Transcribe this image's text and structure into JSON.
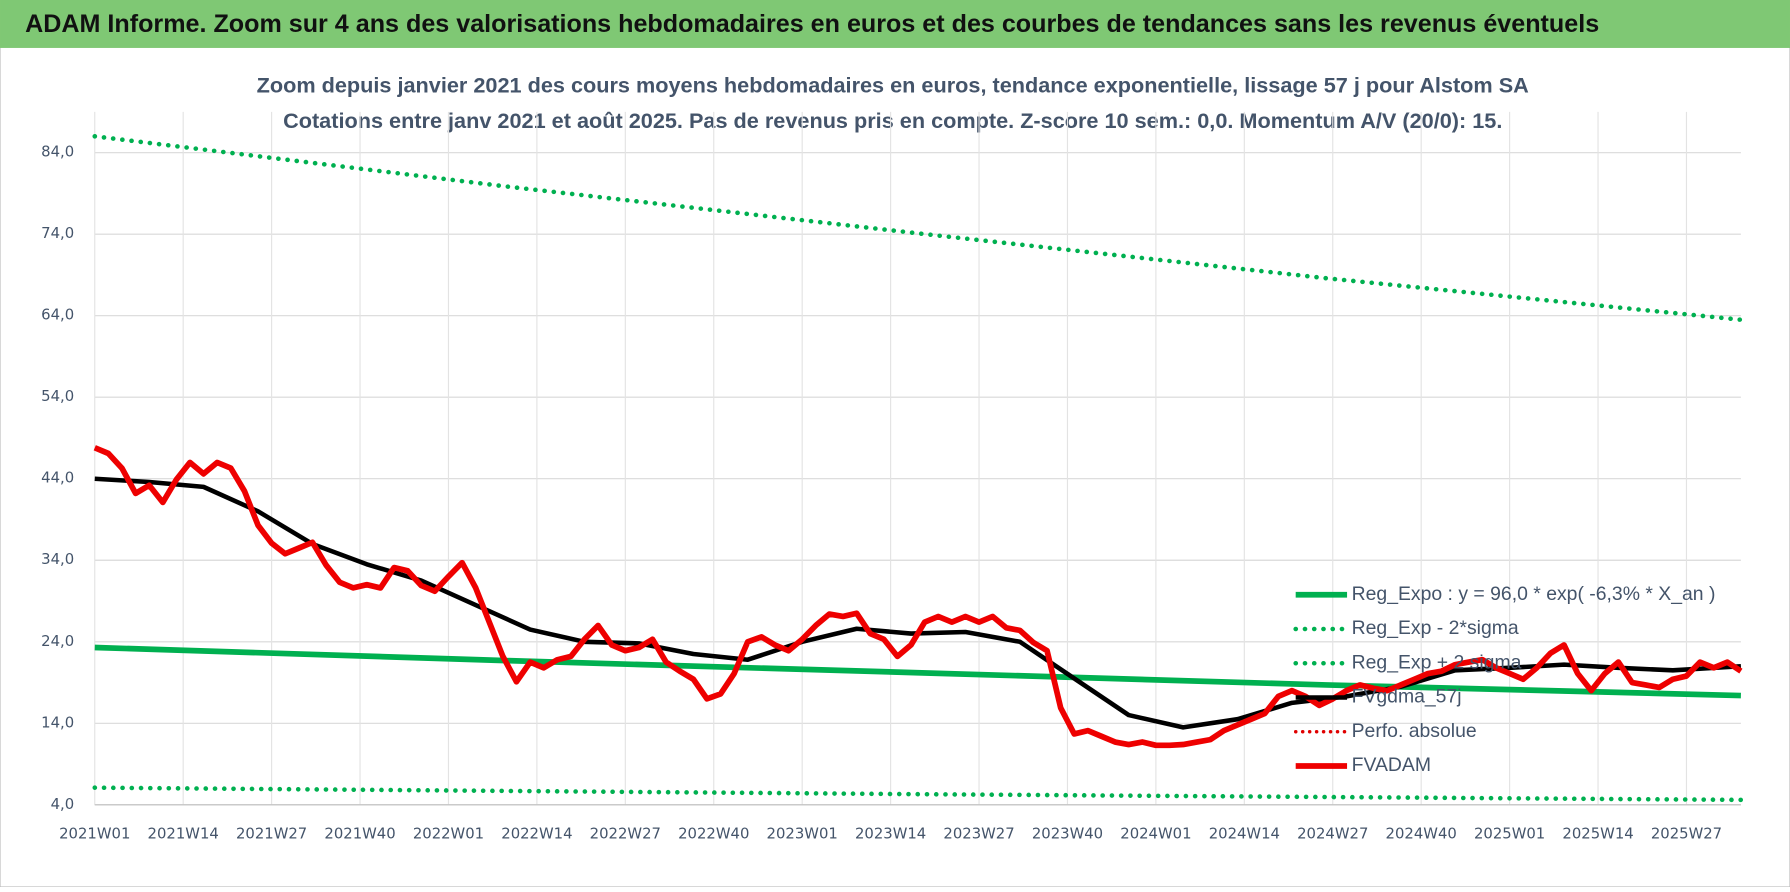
{
  "header_title": "ADAM Informe. Zoom sur 4 ans des valorisations hebdomadaires en euros et des courbes de tendances sans les revenus éventuels",
  "chart_data": {
    "type": "line",
    "title": "Zoom depuis janvier 2021 des cours moyens hebdomadaires en euros, tendance exponentielle, lissage 57 j pour Alstom SA",
    "subtitle": "Cotations entre janv 2021 et août 2025.  Pas de revenus pris en compte. Z-score 10 sem.: 0,0. Momentum A/V (20/0): 15.",
    "xlim": [
      0,
      242
    ],
    "xticks": [
      {
        "value": 0,
        "label": "2021W01"
      },
      {
        "value": 13,
        "label": "2021W14"
      },
      {
        "value": 26,
        "label": "2021W27"
      },
      {
        "value": 39,
        "label": "2021W40"
      },
      {
        "value": 52,
        "label": "2022W01"
      },
      {
        "value": 65,
        "label": "2022W14"
      },
      {
        "value": 78,
        "label": "2022W27"
      },
      {
        "value": 91,
        "label": "2022W40"
      },
      {
        "value": 104,
        "label": "2023W01"
      },
      {
        "value": 117,
        "label": "2023W14"
      },
      {
        "value": 130,
        "label": "2023W27"
      },
      {
        "value": 143,
        "label": "2023W40"
      },
      {
        "value": 156,
        "label": "2024W01"
      },
      {
        "value": 169,
        "label": "2024W14"
      },
      {
        "value": 182,
        "label": "2024W27"
      },
      {
        "value": 195,
        "label": "2024W40"
      },
      {
        "value": 208,
        "label": "2025W01"
      },
      {
        "value": 221,
        "label": "2025W14"
      },
      {
        "value": 234,
        "label": "2025W27"
      }
    ],
    "ylim": [
      4,
      89
    ],
    "yticks": [
      {
        "value": 4,
        "label": "4,0"
      },
      {
        "value": 14,
        "label": "14,0"
      },
      {
        "value": 24,
        "label": "24,0"
      },
      {
        "value": 34,
        "label": "34,0"
      },
      {
        "value": 44,
        "label": "44,0"
      },
      {
        "value": 54,
        "label": "54,0"
      },
      {
        "value": 64,
        "label": "64,0"
      },
      {
        "value": 74,
        "label": "74,0"
      },
      {
        "value": 84,
        "label": "84,0"
      }
    ],
    "grid": true,
    "legend": "lower right",
    "series": [
      {
        "name": "Reg_Expo : y = 96,0 * exp( -6,3% *  X_an )",
        "color": "#00b050",
        "style": "solid",
        "width": 5,
        "x": [
          0,
          60,
          121,
          181,
          242
        ],
        "values": [
          23.3,
          21.7,
          20.2,
          18.7,
          17.4
        ]
      },
      {
        "name": "Reg_Exp - 2*sigma",
        "color": "#00b050",
        "style": "dotted",
        "width": 4,
        "x": [
          0,
          121,
          242
        ],
        "values": [
          6.1,
          5.3,
          4.6
        ]
      },
      {
        "name": "Reg_Exp + 2 sigma",
        "color": "#00b050",
        "style": "dotted",
        "width": 4,
        "x": [
          0,
          60,
          121,
          181,
          242
        ],
        "values": [
          86,
          79.9,
          74.1,
          68.6,
          63.5
        ]
      },
      {
        "name": "FVgdma_57j",
        "color": "#000000",
        "style": "solid",
        "width": 4,
        "x": [
          0,
          8,
          16,
          24,
          32,
          40,
          48,
          56,
          64,
          72,
          80,
          88,
          96,
          104,
          112,
          120,
          128,
          136,
          144,
          152,
          160,
          168,
          176,
          184,
          192,
          200,
          208,
          216,
          224,
          232,
          242
        ],
        "values": [
          44.0,
          43.6,
          43.0,
          40.0,
          36.0,
          33.5,
          31.5,
          28.5,
          25.5,
          24.0,
          23.8,
          22.5,
          21.8,
          24.0,
          25.6,
          25.0,
          25.2,
          24.0,
          19.5,
          15.0,
          13.5,
          14.5,
          16.5,
          17.3,
          18.5,
          20.5,
          20.8,
          21.2,
          20.8,
          20.5,
          21.0
        ]
      },
      {
        "name": "Perfo. absolue",
        "color": "#e00000",
        "style": "dotted",
        "width": 3,
        "x": [],
        "values": []
      },
      {
        "name": "FVADAM",
        "color": "#ee0000",
        "style": "solid",
        "width": 5,
        "x": [
          0,
          2,
          4,
          6,
          8,
          10,
          12,
          14,
          16,
          18,
          20,
          22,
          24,
          26,
          28,
          30,
          32,
          34,
          36,
          38,
          40,
          42,
          44,
          46,
          48,
          50,
          52,
          54,
          56,
          58,
          60,
          62,
          64,
          66,
          68,
          70,
          72,
          74,
          76,
          78,
          80,
          82,
          84,
          86,
          88,
          90,
          92,
          94,
          96,
          98,
          100,
          102,
          104,
          106,
          108,
          110,
          112,
          114,
          116,
          118,
          120,
          122,
          124,
          126,
          128,
          130,
          132,
          134,
          136,
          138,
          140,
          142,
          144,
          146,
          148,
          150,
          152,
          154,
          156,
          158,
          160,
          162,
          164,
          166,
          168,
          170,
          172,
          174,
          176,
          178,
          180,
          182,
          184,
          186,
          188,
          190,
          192,
          194,
          196,
          198,
          200,
          202,
          204,
          206,
          208,
          210,
          212,
          214,
          216,
          218,
          220,
          222,
          224,
          226,
          228,
          230,
          232,
          234,
          236,
          238,
          240,
          242
        ],
        "values": [
          47.8,
          47.1,
          45.3,
          42.2,
          43.2,
          41.1,
          43.9,
          46.0,
          44.6,
          46.0,
          45.3,
          42.5,
          38.3,
          36.1,
          34.8,
          35.5,
          36.2,
          33.4,
          31.3,
          30.6,
          31.0,
          30.6,
          33.1,
          32.7,
          30.9,
          30.2,
          32.0,
          33.7,
          30.6,
          26.4,
          22.2,
          19.1,
          21.5,
          20.8,
          21.8,
          22.2,
          24.3,
          26.0,
          23.6,
          22.9,
          23.3,
          24.3,
          21.5,
          20.4,
          19.4,
          17.0,
          17.6,
          20.1,
          24.0,
          24.6,
          23.6,
          22.9,
          24.3,
          26.0,
          27.4,
          27.1,
          27.5,
          25.0,
          24.3,
          22.2,
          23.6,
          26.4,
          27.1,
          26.4,
          27.1,
          26.4,
          27.1,
          25.7,
          25.4,
          23.9,
          22.9,
          15.9,
          12.7,
          13.1,
          12.4,
          11.7,
          11.4,
          11.7,
          11.3,
          11.3,
          11.4,
          11.7,
          12.0,
          13.1,
          13.8,
          14.5,
          15.2,
          17.3,
          18.0,
          17.3,
          16.2,
          17.0,
          18.0,
          18.7,
          18.3,
          18.0,
          18.7,
          19.4,
          20.1,
          20.4,
          21.2,
          21.5,
          21.8,
          20.8,
          20.1,
          19.4,
          20.8,
          22.6,
          23.6,
          20.1,
          18.0,
          20.1,
          21.5,
          19.0,
          18.7,
          18.4,
          19.4,
          19.8,
          21.5,
          20.8,
          21.5,
          20.4
        ]
      }
    ]
  }
}
